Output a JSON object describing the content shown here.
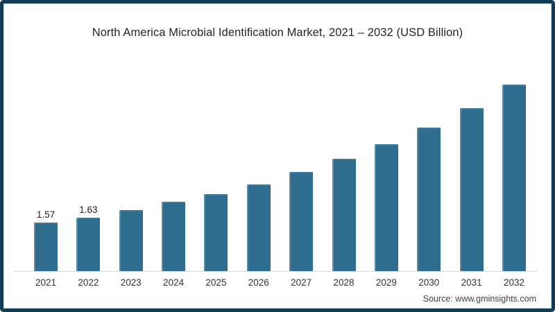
{
  "header": {
    "title": "North America Microbial Identification Market, 2021 – 2032 (USD Billion)"
  },
  "footer": {
    "source": "Source: www.gminsights.com"
  },
  "colors": {
    "frame_border": "#113c54",
    "bar_fill": "#2e6d8e",
    "axis_line": "#d9d9d9",
    "title_text": "#242424",
    "label_text": "#333333"
  },
  "chart_data": {
    "type": "bar",
    "title": "North America Microbial Identification Market, 2021 – 2032 (USD Billion)",
    "xlabel": "",
    "ylabel": "USD Billion",
    "categories": [
      "2021",
      "2022",
      "2023",
      "2024",
      "2025",
      "2026",
      "2027",
      "2028",
      "2029",
      "2030",
      "2031",
      "2032"
    ],
    "values": [
      1.57,
      1.63,
      1.73,
      1.84,
      1.94,
      2.06,
      2.22,
      2.39,
      2.58,
      2.8,
      3.05,
      3.35
    ],
    "data_labels": [
      "1.57",
      "1.63",
      "",
      "",
      "",
      "",
      "",
      "",
      "",
      "",
      "",
      ""
    ],
    "ylim": [
      0.94,
      3.55
    ],
    "grid": false,
    "legend": false,
    "y_axis_visible": false,
    "bar_color": "#2e6d8e"
  }
}
